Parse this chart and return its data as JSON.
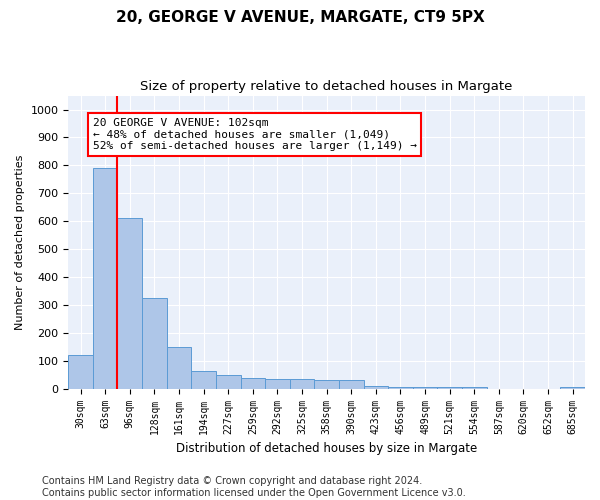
{
  "title1": "20, GEORGE V AVENUE, MARGATE, CT9 5PX",
  "title2": "Size of property relative to detached houses in Margate",
  "xlabel": "Distribution of detached houses by size in Margate",
  "ylabel": "Number of detached properties",
  "categories": [
    "30sqm",
    "63sqm",
    "96sqm",
    "128sqm",
    "161sqm",
    "194sqm",
    "227sqm",
    "259sqm",
    "292sqm",
    "325sqm",
    "358sqm",
    "390sqm",
    "423sqm",
    "456sqm",
    "489sqm",
    "521sqm",
    "554sqm",
    "587sqm",
    "620sqm",
    "652sqm",
    "685sqm"
  ],
  "values": [
    120,
    790,
    610,
    325,
    150,
    65,
    50,
    40,
    35,
    35,
    30,
    30,
    10,
    5,
    5,
    5,
    5,
    0,
    0,
    0,
    5
  ],
  "bar_color": "#aec6e8",
  "bar_edge_color": "#5b9bd5",
  "vline_color": "red",
  "vline_x_index": 2,
  "annotation_text": "20 GEORGE V AVENUE: 102sqm\n← 48% of detached houses are smaller (1,049)\n52% of semi-detached houses are larger (1,149) →",
  "annotation_box_color": "white",
  "annotation_box_edge_color": "red",
  "ylim": [
    0,
    1050
  ],
  "yticks": [
    0,
    100,
    200,
    300,
    400,
    500,
    600,
    700,
    800,
    900,
    1000
  ],
  "background_color": "#eaf0fa",
  "footer_text": "Contains HM Land Registry data © Crown copyright and database right 2024.\nContains public sector information licensed under the Open Government Licence v3.0.",
  "title_fontsize": 11,
  "subtitle_fontsize": 9.5,
  "annotation_fontsize": 8,
  "footer_fontsize": 7,
  "ylabel_fontsize": 8,
  "xlabel_fontsize": 8.5
}
